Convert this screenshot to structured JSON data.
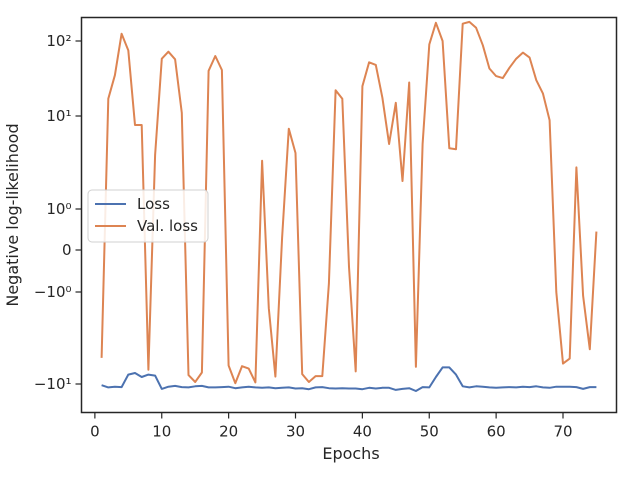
{
  "chart_data": {
    "type": "line",
    "xlabel": "Epochs",
    "ylabel": "Negative log-likelihood",
    "yscale": "symlog",
    "xlim": [
      -2,
      78
    ],
    "x_ticks": [
      0,
      10,
      20,
      30,
      40,
      50,
      60,
      70
    ],
    "y_ticks": [
      {
        "value": -10,
        "label": "−10¹"
      },
      {
        "value": -1,
        "label": "−10⁰"
      },
      {
        "value": 0,
        "label": "0"
      },
      {
        "value": 1,
        "label": "10⁰"
      },
      {
        "value": 10,
        "label": "10¹"
      },
      {
        "value": 100,
        "label": "10²"
      }
    ],
    "legend_position": "center-left",
    "grid": false,
    "x": [
      1,
      2,
      3,
      4,
      5,
      6,
      7,
      8,
      9,
      10,
      11,
      12,
      13,
      14,
      15,
      16,
      17,
      18,
      19,
      20,
      21,
      22,
      23,
      24,
      25,
      26,
      27,
      28,
      29,
      30,
      31,
      32,
      33,
      34,
      35,
      36,
      37,
      38,
      39,
      40,
      41,
      42,
      43,
      44,
      45,
      46,
      47,
      48,
      49,
      50,
      51,
      52,
      53,
      54,
      55,
      56,
      57,
      58,
      59,
      60,
      61,
      62,
      63,
      64,
      65,
      66,
      67,
      68,
      69,
      70,
      71,
      72,
      73,
      74,
      75
    ],
    "series": [
      {
        "name": "Loss",
        "color": "#4c72b0",
        "values": [
          -10.3,
          -10.9,
          -10.7,
          -10.8,
          -7.9,
          -7.6,
          -8.4,
          -7.9,
          -8.1,
          -11.3,
          -10.7,
          -10.5,
          -10.8,
          -10.9,
          -10.6,
          -10.5,
          -10.9,
          -10.9,
          -10.8,
          -10.7,
          -11.1,
          -10.9,
          -10.7,
          -10.9,
          -11.0,
          -10.9,
          -11.1,
          -11.0,
          -10.9,
          -11.2,
          -11.1,
          -11.4,
          -10.9,
          -10.8,
          -11.1,
          -11.2,
          -11.1,
          -11.2,
          -11.2,
          -11.4,
          -11.0,
          -11.2,
          -11.0,
          -11.0,
          -11.6,
          -11.3,
          -11.1,
          -11.9,
          -10.8,
          -10.9,
          -8.4,
          -6.6,
          -6.6,
          -7.9,
          -10.6,
          -10.9,
          -10.6,
          -10.7,
          -10.9,
          -11.0,
          -10.9,
          -10.8,
          -10.9,
          -10.7,
          -10.8,
          -10.6,
          -10.9,
          -11.0,
          -10.7,
          -10.7,
          -10.7,
          -10.8,
          -11.3,
          -10.8,
          -10.8
        ]
      },
      {
        "name": "Val. loss",
        "color": "#dd8452",
        "values": [
          -5.2,
          17.0,
          35.0,
          125.0,
          75.0,
          8.0,
          8.0,
          -7.0,
          3.8,
          58.0,
          72.0,
          57.0,
          11.0,
          -8.0,
          -9.5,
          -7.5,
          40.0,
          63.0,
          41.0,
          -6.3,
          -9.8,
          -6.4,
          -6.8,
          -9.6,
          3.3,
          -1.5,
          -8.3,
          0.3,
          7.3,
          4.0,
          -7.8,
          -9.5,
          -8.2,
          -8.2,
          -0.8,
          22.0,
          17.0,
          -0.4,
          -7.3,
          25.0,
          52.0,
          48.0,
          17.5,
          5.0,
          15.0,
          2.0,
          28.0,
          -6.5,
          5.0,
          90.0,
          175.0,
          100.0,
          4.5,
          4.4,
          170.0,
          180.0,
          150.0,
          88.0,
          43.0,
          34.0,
          32.0,
          44.0,
          58.0,
          70.0,
          60.0,
          30.0,
          20.0,
          9.0,
          -1.0,
          -6.0,
          -5.3,
          2.8,
          -1.1,
          -4.2,
          0.45
        ]
      }
    ]
  }
}
